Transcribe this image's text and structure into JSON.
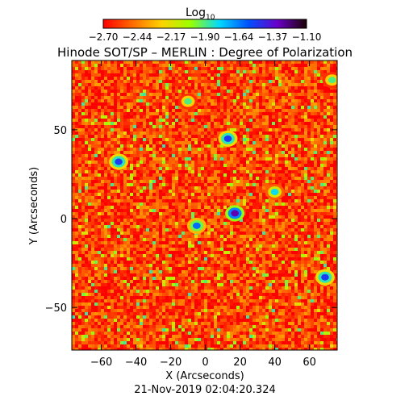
{
  "chart_data": {
    "type": "heatmap",
    "title": "Hinode SOT/SP – MERLIN : Degree of Polarization",
    "xlabel": "X (Arcseconds)",
    "ylabel": "Y (Arcseconds)",
    "timestamp": "21-Nov-2019 02:04:20.324",
    "xlim": [
      -77,
      76
    ],
    "ylim": [
      -74,
      89
    ],
    "xticks": [
      -60,
      -40,
      -20,
      0,
      20,
      40,
      60
    ],
    "yticks": [
      -50,
      0,
      50
    ],
    "colorbar": {
      "label_base": "Log",
      "label_sub": "10",
      "range": [
        -2.7,
        -1.1
      ],
      "ticks": [
        "−2.70",
        "−2.44",
        "−2.17",
        "−1.90",
        "−1.64",
        "−1.37",
        "−1.10"
      ],
      "colormap": [
        "#ff0000",
        "#ff6a00",
        "#ffd200",
        "#9bff00",
        "#00d9ff",
        "#0050ff",
        "#6a00c8",
        "#1a0000"
      ]
    },
    "typical_value": -2.55,
    "enhanced_regions": [
      {
        "x": 17,
        "y": 3,
        "value": -1.3
      },
      {
        "x": 13,
        "y": 45,
        "value": -1.5
      },
      {
        "x": -50,
        "y": 32,
        "value": -1.5
      },
      {
        "x": -5,
        "y": -4,
        "value": -1.6
      },
      {
        "x": 69,
        "y": -33,
        "value": -1.5
      },
      {
        "x": -10,
        "y": 66,
        "value": -1.9
      },
      {
        "x": 40,
        "y": 15,
        "value": -1.8
      },
      {
        "x": 73,
        "y": 78,
        "value": -1.9
      }
    ]
  }
}
